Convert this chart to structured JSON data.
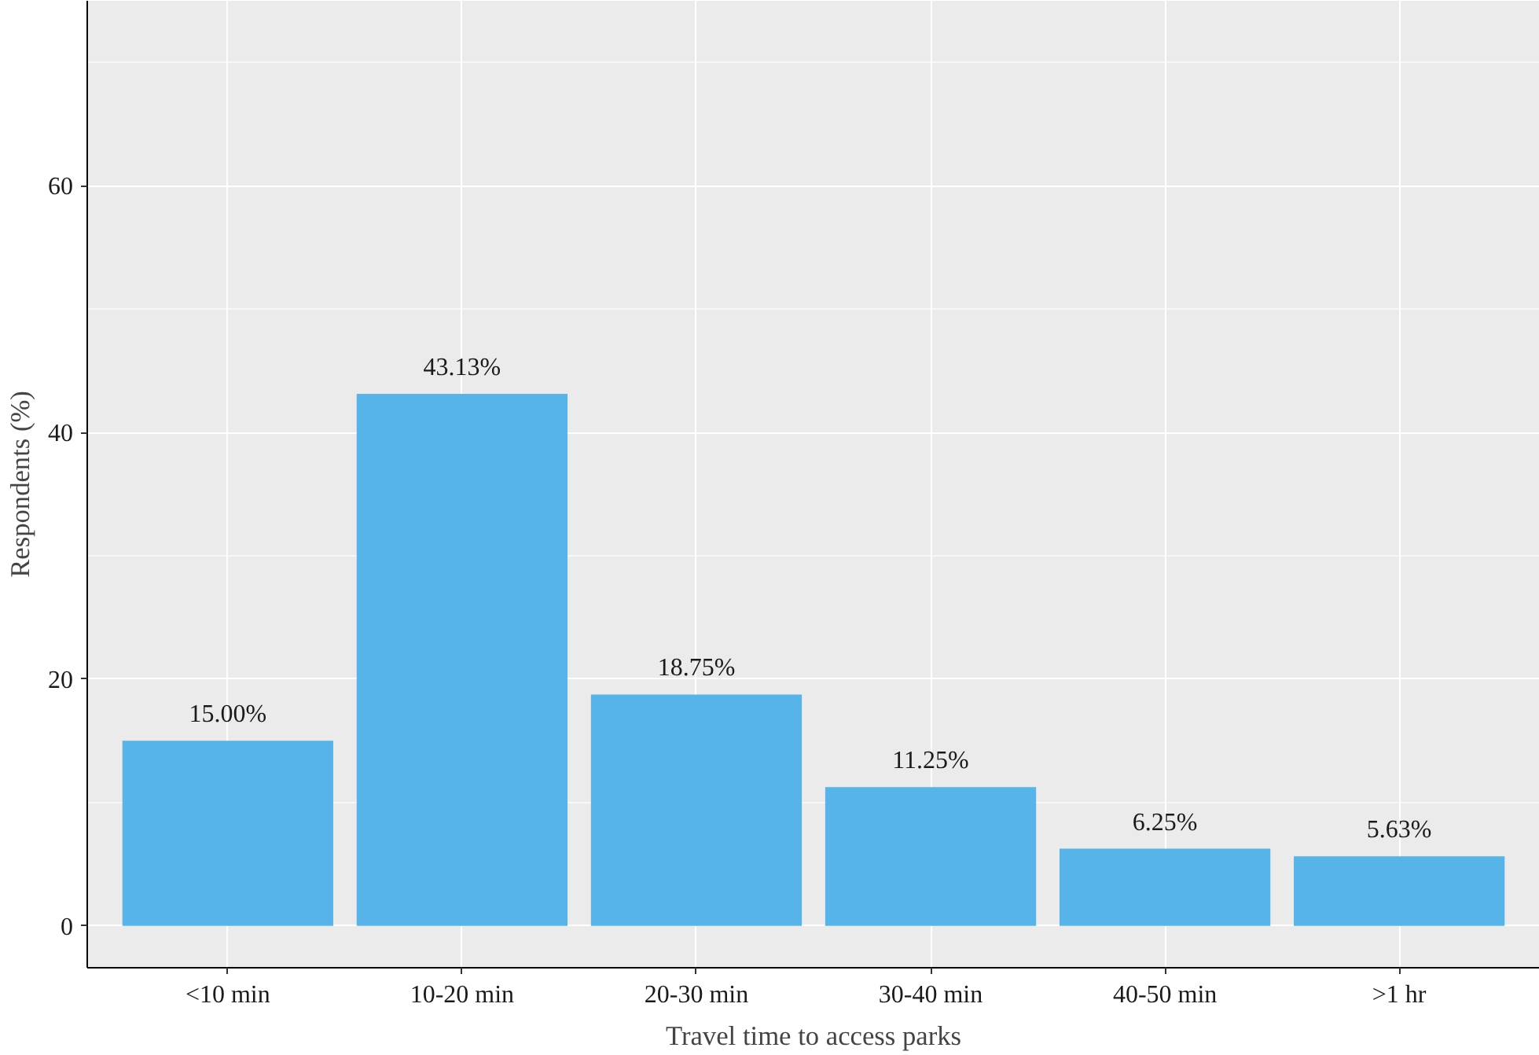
{
  "chart_data": {
    "type": "bar",
    "xlabel": "Travel time to access parks",
    "ylabel": "Respondents (%)",
    "categories": [
      "<10 min",
      "10-20 min",
      "20-30 min",
      "30-40 min",
      "40-50 min",
      ">1 hr"
    ],
    "values": [
      15.0,
      43.13,
      18.75,
      11.25,
      6.25,
      5.63
    ],
    "value_labels": [
      "15.00%",
      "43.13%",
      "18.75%",
      "11.25%",
      "6.25%",
      "5.63%"
    ],
    "color": "#56b4e9",
    "ylim": [
      -3.4,
      75
    ],
    "yticks": [
      0,
      20,
      40,
      60
    ],
    "grid": true
  }
}
